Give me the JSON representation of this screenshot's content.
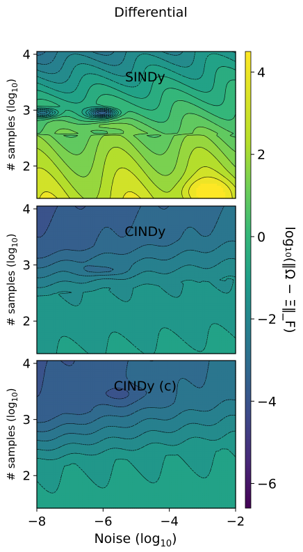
{
  "chart_data": {
    "type": "contour",
    "title": "Differential",
    "xlabel": "Noise (log",
    "xlabel_sub": "10",
    "xlabel_tail": ")",
    "ylabel": "# samples (log",
    "ylabel_sub": "10",
    "ylabel_tail": ")",
    "xlim": [
      -8,
      -2
    ],
    "ylim": [
      1.42,
      4.05
    ],
    "xticks": [
      -8,
      -6,
      -4,
      -2
    ],
    "yticks": [
      2,
      3,
      4
    ],
    "xtick_labels": [
      "−8",
      "−6",
      "−4",
      "−2"
    ],
    "ytick_labels": [
      "2",
      "3",
      "4"
    ],
    "colorbar": {
      "label": "log₁₀(‖Ω − Ξ‖_F)",
      "range": [
        -6.6,
        4.5
      ],
      "ticks": [
        4,
        2,
        0,
        -2,
        -4,
        -6
      ],
      "tick_labels": [
        "4",
        "2",
        "0",
        "−2",
        "−4",
        "−6"
      ],
      "colormap": "viridis"
    },
    "panels": [
      {
        "name": "SINDy",
        "mode": "sindy",
        "hotspots": [
          {
            "x": -6.0,
            "y": 2.95,
            "depth": -4.5
          },
          {
            "x": -7.8,
            "y": 2.95,
            "depth": -3.5
          }
        ]
      },
      {
        "name": "CINDy",
        "mode": "cindy"
      },
      {
        "name": "CINDy (c)",
        "mode": "cindyc"
      }
    ]
  }
}
